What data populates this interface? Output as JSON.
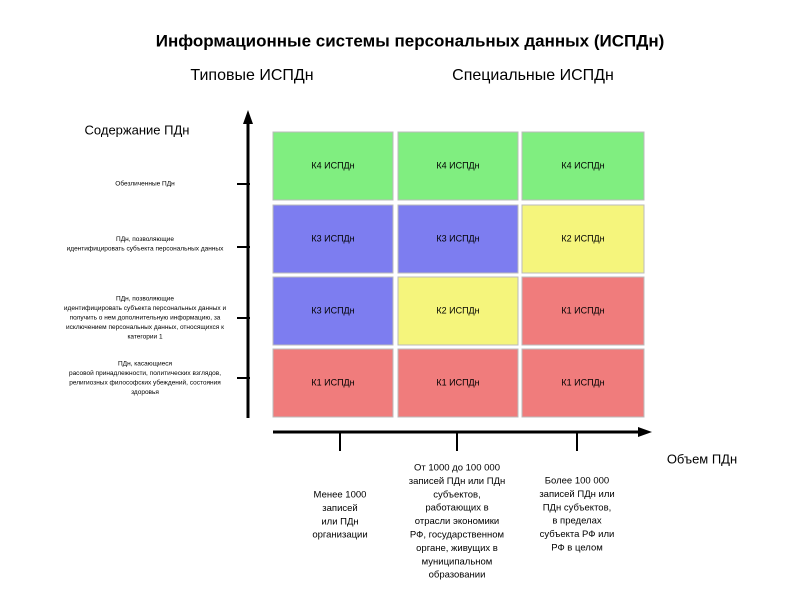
{
  "title": "Информационные системы персональных данных (ИСПДн)",
  "headers": [
    "Типовые ИСПДн",
    "Специальные ИСПДн"
  ],
  "y_axis": {
    "label": "Содержание ПДн",
    "items": [
      {
        "lines": [
          "Обезличенные ПДн"
        ]
      },
      {
        "lines": [
          "ПДн, позволяющие",
          "идентифицировать субъекта персональных данных"
        ]
      },
      {
        "lines": [
          "ПДн, позволяющие",
          "идентифицировать субъекта персональных данных и",
          "получить о нем дополнительную информацию, за",
          "исключением персональных данных, относящихся к",
          "категории 1"
        ]
      },
      {
        "lines": [
          "ПДн, касающиеся",
          "расовой принадлежности, политических взглядов,",
          "религиозных философских убеждений, состояния",
          "здоровья"
        ]
      }
    ]
  },
  "grid": {
    "rows": [
      [
        {
          "label": "К4 ИСПДн",
          "color": "#80ee80"
        },
        {
          "label": "К4 ИСПДн",
          "color": "#80ee80"
        },
        {
          "label": "К4 ИСПДн",
          "color": "#80ee80"
        }
      ],
      [
        {
          "label": "К3 ИСПДн",
          "color": "#7d7df0"
        },
        {
          "label": "К3 ИСПДн",
          "color": "#7d7df0"
        },
        {
          "label": "К2 ИСПДн",
          "color": "#f5f57c"
        }
      ],
      [
        {
          "label": "К3 ИСПДн",
          "color": "#7d7df0"
        },
        {
          "label": "К2 ИСПДн",
          "color": "#f5f57c"
        },
        {
          "label": "К1 ИСПДн",
          "color": "#f07c7c"
        }
      ],
      [
        {
          "label": "К1 ИСПДн",
          "color": "#f07c7c"
        },
        {
          "label": "К1 ИСПДн",
          "color": "#f07c7c"
        },
        {
          "label": "К1 ИСПДн",
          "color": "#f07c7c"
        }
      ]
    ]
  },
  "x_axis": {
    "label": "Объем ПДн",
    "items": [
      {
        "lines": [
          "Менее 1000",
          "записей",
          "или ПДн",
          "организации"
        ]
      },
      {
        "lines": [
          "От 1000 до 100 000",
          "записей ПДн или ПДн",
          "субъектов,",
          "работающих в",
          "отрасли экономики",
          "РФ, государственном",
          "органе, живущих в",
          "муниципальном",
          "образовании"
        ]
      },
      {
        "lines": [
          "Более 100 000",
          "записей ПДн или",
          "ПДн субъектов,",
          "в пределах",
          "субъекта РФ или",
          "РФ в целом"
        ]
      }
    ]
  }
}
